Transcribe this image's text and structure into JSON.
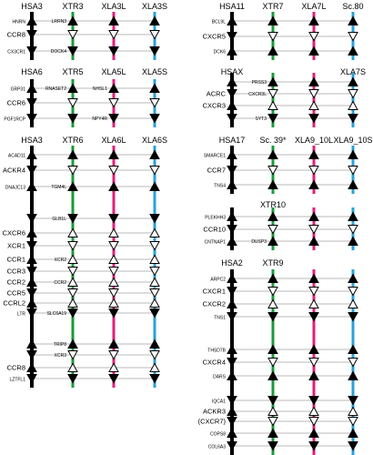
{
  "colors": {
    "human": "#000000",
    "xtr": "#1a9a3a",
    "xla_l": "#e0207a",
    "xla_s": "#2aa0d8"
  },
  "panels": [
    {
      "id": "p1",
      "headers": [
        "HSA3",
        "XTR3",
        "XLA3L",
        "XLA3S"
      ],
      "rows": [
        {
          "human": "HNRN",
          "mid": "LRRN3",
          "arrows": [
            "up",
            "up",
            "up",
            "up"
          ],
          "big": false
        },
        {
          "human": "CCR8",
          "mid": "",
          "arrows": [
            "down",
            "none",
            "none",
            "none"
          ],
          "big": true
        },
        {
          "human": "CX3CR1",
          "mid": "DOCK4",
          "arrows": [
            "down",
            "down",
            "down",
            "down"
          ],
          "big": false
        }
      ]
    },
    {
      "id": "p2",
      "headers": [
        "HSA6",
        "XTR5",
        "XLA5L",
        "XLA5S"
      ],
      "rows": [
        {
          "human": "GRP31",
          "mid": "RNASET2",
          "extra": "NHSL1",
          "arrows": [
            "up",
            "up",
            "up",
            "up"
          ],
          "big": false
        },
        {
          "human": "CCR6",
          "mid": "",
          "arrows": [
            "down",
            "none",
            "none",
            "none"
          ],
          "big": true
        },
        {
          "human": "PGF1RCP",
          "mid": "",
          "extra": "NPY4R",
          "arrows": [
            "down",
            "down",
            "down",
            "down"
          ],
          "big": false
        }
      ]
    },
    {
      "id": "p3",
      "headers": [
        "HSA3",
        "XTR6",
        "XLA6L",
        "XLA6S"
      ],
      "rows": [
        {
          "human": "ACAD11",
          "mid": "",
          "big": false
        },
        {
          "human": "ACKR4",
          "mid": "",
          "big": true
        },
        {
          "human": "DNAJC13",
          "mid": "TGM4L",
          "big": false
        },
        {
          "human": "",
          "mid": "GLB1L",
          "big": false
        },
        {
          "human": "CXCR6",
          "mid": "",
          "big": true
        },
        {
          "human": "XCR1",
          "mid": "",
          "big": true
        },
        {
          "human": "CCR1",
          "mid": "XCR2",
          "big": true
        },
        {
          "human": "CCR3",
          "mid": "",
          "big": true
        },
        {
          "human": "CCR2",
          "mid": "CCR2",
          "big": true
        },
        {
          "human": "CCR5",
          "mid": "",
          "big": true
        },
        {
          "human": "CCRL2",
          "mid": "",
          "big": true
        },
        {
          "human": "LTR",
          "mid": "SLC6A19",
          "big": false
        },
        {
          "human": "",
          "mid": "TRIP8",
          "big": false
        },
        {
          "human": "",
          "mid": "XCR3",
          "big": true
        },
        {
          "human": "CCR8",
          "mid": "",
          "big": true
        },
        {
          "human": "LZTFL1",
          "mid": "",
          "big": false
        }
      ]
    },
    {
      "id": "p4",
      "headers": [
        "HSA11",
        "XTR7",
        "XLA7L",
        "Sc.80"
      ],
      "rows": [
        {
          "human": "BCL9L",
          "mid": "",
          "big": false
        },
        {
          "human": "CXCR5",
          "mid": "",
          "big": true
        },
        {
          "human": "DCK6",
          "mid": "",
          "big": false
        }
      ]
    },
    {
      "id": "p5",
      "headers": [
        "HSAX",
        "",
        "",
        "XLA7S"
      ],
      "rows": [
        {
          "human": "",
          "mid": "PRSS3",
          "big": false
        },
        {
          "human": "ACRC",
          "mid": "CXCR3L",
          "big": true
        },
        {
          "human": "CXCR3",
          "mid": "",
          "big": true
        },
        {
          "human": "",
          "mid": "SYT3",
          "big": false
        }
      ]
    },
    {
      "id": "p6",
      "headers": [
        "HSA17",
        "Sc. 39*",
        "XLA9_10L",
        "XLA9_10S"
      ],
      "rows": [
        {
          "human": "SMARCE1",
          "mid": "",
          "big": false
        },
        {
          "human": "CCR7",
          "mid": "",
          "big": true
        },
        {
          "human": "TNS4",
          "mid": "",
          "big": false
        }
      ]
    },
    {
      "id": "p7",
      "headers": [
        "",
        "XTR10",
        "",
        ""
      ],
      "rows": [
        {
          "human": "PLEKHH3",
          "mid": "",
          "big": false
        },
        {
          "human": "CCR10",
          "mid": "",
          "big": true
        },
        {
          "human": "CNTNAP1",
          "mid": "DUSP3",
          "big": false
        }
      ]
    },
    {
      "id": "p8",
      "headers": [
        "HSA2",
        "XTR9",
        "",
        ""
      ],
      "rows": [
        {
          "human": "ARPC2",
          "mid": "",
          "big": false
        },
        {
          "human": "CXCR1",
          "mid": "",
          "big": true
        },
        {
          "human": "CXCR2",
          "mid": "",
          "big": true
        },
        {
          "human": "TNS1",
          "mid": "",
          "big": false
        },
        {
          "human": "THSD7B",
          "mid": "",
          "big": false
        },
        {
          "human": "CXCR4",
          "mid": "",
          "big": true
        },
        {
          "human": "DARS",
          "mid": "",
          "big": false
        },
        {
          "human": "IQCA1",
          "mid": "",
          "big": false
        },
        {
          "human": "ACKR3",
          "mid": "",
          "big": true
        },
        {
          "human": "(CXCR7)",
          "mid": "",
          "big": true
        },
        {
          "human": "COPS8",
          "mid": "",
          "big": false
        },
        {
          "human": "COL6A3",
          "mid": "",
          "big": false
        }
      ]
    }
  ]
}
